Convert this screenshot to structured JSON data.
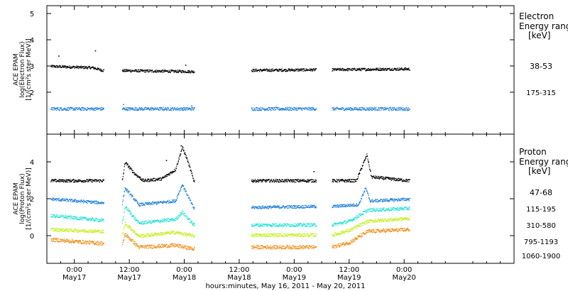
{
  "time_axis": {
    "label": "hours:minutes, May 16, 2011 - May 20, 2011",
    "range_hours": [
      -6,
      96
    ],
    "ticks": [
      {
        "hour": 0,
        "time": "0:00",
        "date": "May17"
      },
      {
        "hour": 12,
        "time": "12:00",
        "date": "May17"
      },
      {
        "hour": 24,
        "time": "0:00",
        "date": "May18"
      },
      {
        "hour": 36,
        "time": "12:00",
        "date": "May18"
      },
      {
        "hour": 48,
        "time": "0:00",
        "date": "May19"
      },
      {
        "hour": 60,
        "time": "12:00",
        "date": "May19"
      },
      {
        "hour": 72,
        "time": "0:00",
        "date": "May20"
      }
    ]
  },
  "data_segments_hours": [
    [
      -5.2,
      6.4
    ],
    [
      10.4,
      26.2
    ],
    [
      38.6,
      52.8
    ],
    [
      56.2,
      73.2
    ]
  ],
  "chart_data": [
    {
      "type": "scatter",
      "panel": "electron",
      "ylabel": [
        "ACE EPAM",
        "log(Electron Flux)",
        "[1/(cm²s ster MeV)]"
      ],
      "ylim": [
        0.4,
        5.3
      ],
      "yticks": [
        2,
        3,
        4,
        5
      ],
      "legend_title": [
        "Electron",
        "Energy range",
        "[keV]"
      ],
      "series": [
        {
          "name": "38-53",
          "color": "#000000",
          "base": 2.9,
          "noise": 0.05,
          "trend": [
            [
              -5,
              3.0
            ],
            [
              4,
              2.95
            ],
            [
              6,
              2.85
            ],
            [
              26,
              2.8
            ],
            [
              39,
              2.85
            ],
            [
              73,
              2.9
            ]
          ],
          "events": [
            [
              -3.5,
              3.4
            ],
            [
              4.5,
              3.6
            ],
            [
              24.2,
              3.05
            ],
            [
              25.1,
              2.8
            ]
          ]
        },
        {
          "name": "175-315",
          "color": "#1e7fd6",
          "base": 1.38,
          "noise": 0.06,
          "trend": [
            [
              -5,
              1.38
            ],
            [
              73,
              1.38
            ]
          ],
          "events": [
            [
              10.6,
              1.55
            ],
            [
              25.5,
              1.5
            ]
          ]
        }
      ]
    },
    {
      "type": "scatter",
      "panel": "proton",
      "ylabel": [
        "ACE EPAM",
        "log(Proton Flux)",
        "[1/(cm²s ster MeV)]"
      ],
      "ylim": [
        -1.5,
        5.5
      ],
      "yticks": [
        0,
        2,
        4
      ],
      "legend_title": [
        "Proton",
        "Energy range",
        "[keV]"
      ],
      "series": [
        {
          "name": "47-68",
          "color": "#000000",
          "noise": 0.08,
          "trend": [
            [
              -5,
              3.0
            ],
            [
              10.4,
              3.0
            ],
            [
              11,
              4.0
            ],
            [
              13,
              3.4
            ],
            [
              15,
              3.0
            ],
            [
              19,
              3.1
            ],
            [
              22,
              3.6
            ],
            [
              23.5,
              4.8
            ],
            [
              24.5,
              4.2
            ],
            [
              26,
              3.0
            ],
            [
              38.6,
              3.0
            ],
            [
              52,
              3.0
            ],
            [
              61.5,
              3.0
            ],
            [
              62.8,
              3.8
            ],
            [
              63.8,
              4.4
            ],
            [
              64.8,
              3.2
            ],
            [
              73,
              3.0
            ]
          ],
          "events": [
            [
              52.2,
              3.5
            ],
            [
              23.2,
              4.9
            ],
            [
              20,
              4.1
            ]
          ]
        },
        {
          "name": "115-195",
          "color": "#1e7fd6",
          "noise": 0.08,
          "trend": [
            [
              -5,
              2.0
            ],
            [
              6,
              1.8
            ],
            [
              10.4,
              1.8
            ],
            [
              11,
              2.6
            ],
            [
              14,
              1.7
            ],
            [
              22,
              1.9
            ],
            [
              23.5,
              2.8
            ],
            [
              26,
              1.5
            ],
            [
              38.6,
              1.55
            ],
            [
              52,
              1.6
            ],
            [
              56.2,
              1.6
            ],
            [
              62,
              1.7
            ],
            [
              63.5,
              2.6
            ],
            [
              64.5,
              1.9
            ],
            [
              73,
              2.0
            ]
          ],
          "events": []
        },
        {
          "name": "310-580",
          "color": "#22e0d6",
          "noise": 0.09,
          "trend": [
            [
              -5,
              1.1
            ],
            [
              6,
              0.85
            ],
            [
              10.4,
              0.7
            ],
            [
              11,
              1.6
            ],
            [
              14,
              0.7
            ],
            [
              22,
              0.9
            ],
            [
              23.5,
              1.3
            ],
            [
              26,
              0.6
            ],
            [
              38.6,
              0.6
            ],
            [
              52,
              0.6
            ],
            [
              56.2,
              0.6
            ],
            [
              60,
              0.8
            ],
            [
              64,
              1.4
            ],
            [
              73,
              1.5
            ]
          ],
          "events": []
        },
        {
          "name": "795-1193",
          "color": "#c4ee1a",
          "noise": 0.09,
          "trend": [
            [
              -5,
              0.35
            ],
            [
              6,
              0.25
            ],
            [
              10.4,
              0.0
            ],
            [
              11,
              0.7
            ],
            [
              14,
              0.0
            ],
            [
              22,
              0.2
            ],
            [
              26,
              0.0
            ],
            [
              38.6,
              0.05
            ],
            [
              52,
              0.05
            ],
            [
              56.2,
              0.05
            ],
            [
              60,
              0.3
            ],
            [
              64,
              0.8
            ],
            [
              73,
              0.95
            ]
          ],
          "events": []
        },
        {
          "name": "1060-1900",
          "color": "#f08a10",
          "noise": 0.1,
          "trend": [
            [
              -5,
              -0.2
            ],
            [
              6,
              -0.4
            ],
            [
              10.4,
              -0.5
            ],
            [
              11,
              0.1
            ],
            [
              14,
              -0.6
            ],
            [
              22,
              -0.5
            ],
            [
              26,
              -0.7
            ],
            [
              38.6,
              -0.6
            ],
            [
              52,
              -0.6
            ],
            [
              56.2,
              -0.6
            ],
            [
              60,
              -0.35
            ],
            [
              64,
              0.25
            ],
            [
              73,
              0.35
            ]
          ],
          "events": []
        }
      ]
    }
  ]
}
